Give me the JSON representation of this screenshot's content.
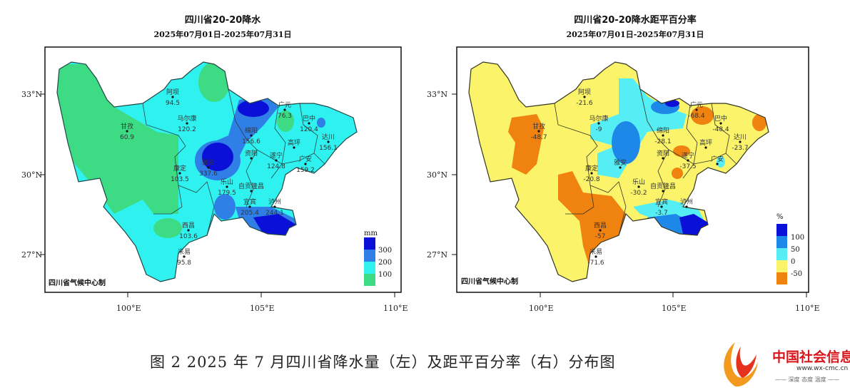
{
  "left_map": {
    "title": "四川省20-20降水",
    "subtitle": "2025年07月01日-2025年07月31日",
    "credit": "四川省气候中心制",
    "lat_labels": [
      "33°N",
      "30°N",
      "27°N"
    ],
    "lon_labels": [
      "100°E",
      "105°E",
      "110°E"
    ],
    "legend": {
      "unit": "mm",
      "levels": [
        "300",
        "200",
        "100"
      ],
      "colors": [
        "#0a10d8",
        "#2f7fe6",
        "#2ff2f0",
        "#3ddc84"
      ]
    },
    "stations": [
      {
        "name": "阿坝",
        "value": "94.5"
      },
      {
        "name": "马尔康",
        "value": "120.2"
      },
      {
        "name": "甘孜",
        "value": "60.9"
      },
      {
        "name": "康定",
        "value": "103.5"
      },
      {
        "name": "西昌",
        "value": "103.6"
      },
      {
        "name": "米易",
        "value": "95.8"
      },
      {
        "name": "广元",
        "value": "76.3"
      },
      {
        "name": "巴中",
        "value": "120.4"
      },
      {
        "name": "达川",
        "value": "156.1"
      },
      {
        "name": "绵阳",
        "value": "156.6"
      },
      {
        "name": "遂宁",
        "value": "124.8"
      },
      {
        "name": "高坪",
        "value": ""
      },
      {
        "name": "广安",
        "value": "159.2"
      },
      {
        "name": "雅安",
        "value": "337.6"
      },
      {
        "name": "资阳",
        "value": ""
      },
      {
        "name": "乐山",
        "value": "179.5"
      },
      {
        "name": "自贡隆昌",
        "value": ""
      },
      {
        "name": "宜宾",
        "value": "205.4"
      },
      {
        "name": "泸州",
        "value": "244.1"
      }
    ]
  },
  "right_map": {
    "title": "四川省20-20降水距平百分率",
    "subtitle": "2025年07月01日-2025年07月31日",
    "credit": "四川省气候中心制",
    "lat_labels": [
      "33°N",
      "30°N",
      "27°N"
    ],
    "lon_labels": [
      "100°E",
      "105°E",
      "110°E"
    ],
    "legend": {
      "unit": "%",
      "levels": [
        "100",
        "50",
        "0",
        "-50"
      ],
      "colors": [
        "#0a10d8",
        "#1e8ae8",
        "#55eef5",
        "#fbf46a",
        "#f0820f"
      ]
    },
    "stations": [
      {
        "name": "阿坝",
        "value": "-21.6"
      },
      {
        "name": "马尔康",
        "value": "-9"
      },
      {
        "name": "甘孜",
        "value": "-48.7"
      },
      {
        "name": "康定",
        "value": "-20.8"
      },
      {
        "name": "西昌",
        "value": "-57"
      },
      {
        "name": "米易",
        "value": "-71.6"
      },
      {
        "name": "广元",
        "value": "-68.4"
      },
      {
        "name": "巴中",
        "value": "-48.4"
      },
      {
        "name": "达川",
        "value": "-23.7"
      },
      {
        "name": "绵阳",
        "value": "-28.1"
      },
      {
        "name": "遂宁",
        "value": "-37.5"
      },
      {
        "name": "高坪",
        "value": ""
      },
      {
        "name": "广安",
        "value": ""
      },
      {
        "name": "雅安",
        "value": ""
      },
      {
        "name": "资阳",
        "value": ""
      },
      {
        "name": "乐山",
        "value": "-30.2"
      },
      {
        "name": "自贡隆昌",
        "value": ""
      },
      {
        "name": "宜宾",
        "value": "-3.7"
      },
      {
        "name": "泸州",
        "value": ""
      }
    ]
  },
  "caption": "图 2 2025 年 7 月四川省降水量（左）及距平百分率（右）分布图",
  "watermark": {
    "name": "中国社会信息网",
    "url": "www.wx-cmc.cn",
    "slogan": "—— 深度 态度 温度 ——"
  }
}
